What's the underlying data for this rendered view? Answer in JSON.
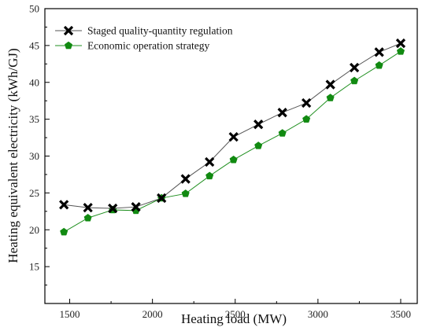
{
  "chart_data": {
    "type": "line",
    "xlabel": "Heating load (MW)",
    "ylabel": "Heating equivalent electricity (kWh/GJ)",
    "xlim": [
      1350,
      3600
    ],
    "ylim": [
      10,
      50
    ],
    "xticks": [
      1500,
      2000,
      2500,
      3000,
      3500
    ],
    "yticks": [
      15,
      20,
      25,
      30,
      35,
      40,
      45,
      50
    ],
    "x_minor_ticks": [
      1750,
      2250,
      2750,
      3250
    ],
    "y_minor_ticks": [
      12.5,
      17.5,
      22.5,
      27.5,
      32.5,
      37.5,
      42.5,
      47.5
    ],
    "grid": false,
    "legend_position": "top-left",
    "series": [
      {
        "name": "Staged quality-quantity regulation",
        "marker": "x",
        "color": "#000000",
        "line_color": "#555555",
        "x": [
          1465,
          1610,
          1760,
          1900,
          2055,
          2200,
          2345,
          2490,
          2640,
          2785,
          2930,
          3075,
          3220,
          3370,
          3500
        ],
        "values": [
          23.4,
          23.0,
          22.9,
          23.1,
          24.3,
          26.9,
          29.2,
          32.6,
          34.3,
          35.9,
          37.2,
          39.7,
          42.0,
          44.1,
          45.3
        ]
      },
      {
        "name": "Economic operation strategy",
        "marker": "pentagon",
        "color": "#118a11",
        "line_color": "#1f8f1f",
        "x": [
          1465,
          1610,
          1760,
          1900,
          2055,
          2200,
          2345,
          2490,
          2640,
          2785,
          2930,
          3075,
          3220,
          3370,
          3500
        ],
        "values": [
          19.7,
          21.6,
          22.7,
          22.6,
          24.3,
          24.9,
          27.3,
          29.5,
          31.4,
          33.1,
          35.0,
          37.9,
          40.2,
          42.3,
          44.2
        ]
      }
    ]
  }
}
